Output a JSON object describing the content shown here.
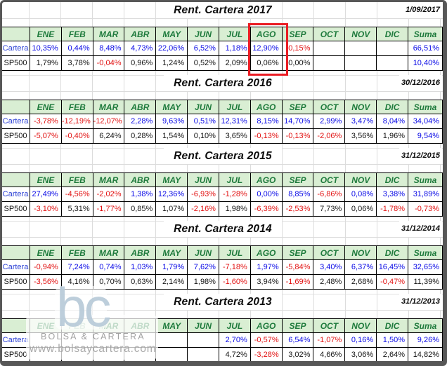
{
  "colors": {
    "positive": "#0a0ae6",
    "negative": "#e21212",
    "label_blue": "#2a3fd4",
    "header_bg": "#d9eed3",
    "header_text": "#1e7a3c",
    "highlight": "#ea1c23"
  },
  "header": [
    {
      "t": ""
    },
    {
      "t": "ENE"
    },
    {
      "t": "FEB"
    },
    {
      "t": "MAR"
    },
    {
      "t": "ABR"
    },
    {
      "t": "MAY"
    },
    {
      "t": "JUN"
    },
    {
      "t": "JUL"
    },
    {
      "t": "AGO"
    },
    {
      "t": "SEP"
    },
    {
      "t": "OCT"
    },
    {
      "t": "NOV"
    },
    {
      "t": "DIC"
    },
    {
      "t": "Suma"
    }
  ],
  "blocks": [
    {
      "title": "Rent. Cartera 2017",
      "date": "1/09/2017",
      "highlighted_month": "AGO",
      "cartera": [
        {
          "t": "Cartera",
          "c": "rl-cartera"
        },
        {
          "t": "10,35%",
          "c": "pos"
        },
        {
          "t": "0,44%",
          "c": "pos"
        },
        {
          "t": "8,48%",
          "c": "pos"
        },
        {
          "t": "4,73%",
          "c": "pos"
        },
        {
          "t": "22,06%",
          "c": "pos"
        },
        {
          "t": "6,52%",
          "c": "pos"
        },
        {
          "t": "1,18%",
          "c": "pos"
        },
        {
          "t": "12,90%",
          "c": "pos"
        },
        {
          "t": "-0,15%",
          "c": "neg"
        },
        {
          "t": ""
        },
        {
          "t": ""
        },
        {
          "t": ""
        },
        {
          "t": "66,51%",
          "c": "pos"
        }
      ],
      "sp500": [
        {
          "t": "SP500",
          "c": "rl-sp500"
        },
        {
          "t": "1,79%",
          "c": "plain"
        },
        {
          "t": "3,78%",
          "c": "plain"
        },
        {
          "t": "-0,04%",
          "c": "neg"
        },
        {
          "t": "0,96%",
          "c": "plain"
        },
        {
          "t": "1,24%",
          "c": "plain"
        },
        {
          "t": "0,52%",
          "c": "plain"
        },
        {
          "t": "2,09%",
          "c": "plain"
        },
        {
          "t": "0,06%",
          "c": "plain"
        },
        {
          "t": "0,00%",
          "c": "plain"
        },
        {
          "t": ""
        },
        {
          "t": ""
        },
        {
          "t": ""
        },
        {
          "t": "10,40%",
          "c": "pos"
        }
      ]
    },
    {
      "title": "Rent. Cartera 2016",
      "date": "30/12/2016",
      "cartera": [
        {
          "t": "Cartera",
          "c": "rl-cartera"
        },
        {
          "t": "-3,78%",
          "c": "neg"
        },
        {
          "t": "-12,19%",
          "c": "neg"
        },
        {
          "t": "-12,07%",
          "c": "neg"
        },
        {
          "t": "2,28%",
          "c": "pos"
        },
        {
          "t": "9,63%",
          "c": "pos"
        },
        {
          "t": "0,51%",
          "c": "pos"
        },
        {
          "t": "12,31%",
          "c": "pos"
        },
        {
          "t": "8,15%",
          "c": "pos"
        },
        {
          "t": "14,70%",
          "c": "pos"
        },
        {
          "t": "2,99%",
          "c": "pos"
        },
        {
          "t": "3,47%",
          "c": "pos"
        },
        {
          "t": "8,04%",
          "c": "pos"
        },
        {
          "t": "34,04%",
          "c": "pos"
        }
      ],
      "sp500": [
        {
          "t": "SP500",
          "c": "rl-sp500"
        },
        {
          "t": "-5,07%",
          "c": "neg"
        },
        {
          "t": "-0,40%",
          "c": "neg"
        },
        {
          "t": "6,24%",
          "c": "plain"
        },
        {
          "t": "0,28%",
          "c": "plain"
        },
        {
          "t": "1,54%",
          "c": "plain"
        },
        {
          "t": "0,10%",
          "c": "plain"
        },
        {
          "t": "3,65%",
          "c": "plain"
        },
        {
          "t": "-0,13%",
          "c": "neg"
        },
        {
          "t": "-0,13%",
          "c": "neg"
        },
        {
          "t": "-2,06%",
          "c": "neg"
        },
        {
          "t": "3,56%",
          "c": "plain"
        },
        {
          "t": "1,96%",
          "c": "plain"
        },
        {
          "t": "9,54%",
          "c": "pos"
        }
      ]
    },
    {
      "title": "Rent. Cartera 2015",
      "date": "31/12/2015",
      "cartera": [
        {
          "t": "Cartera",
          "c": "rl-cartera"
        },
        {
          "t": "27,49%",
          "c": "pos"
        },
        {
          "t": "-4,56%",
          "c": "neg"
        },
        {
          "t": "-2,02%",
          "c": "neg"
        },
        {
          "t": "1,38%",
          "c": "pos"
        },
        {
          "t": "12,36%",
          "c": "pos"
        },
        {
          "t": "-6,93%",
          "c": "neg"
        },
        {
          "t": "-1,28%",
          "c": "neg"
        },
        {
          "t": "0,00%",
          "c": "pos"
        },
        {
          "t": "8,85%",
          "c": "pos"
        },
        {
          "t": "-6,86%",
          "c": "neg"
        },
        {
          "t": "0,08%",
          "c": "pos"
        },
        {
          "t": "3,38%",
          "c": "pos"
        },
        {
          "t": "31,89%",
          "c": "pos"
        }
      ],
      "sp500": [
        {
          "t": "SP500",
          "c": "rl-sp500"
        },
        {
          "t": "-3,10%",
          "c": "neg"
        },
        {
          "t": "5,31%",
          "c": "plain"
        },
        {
          "t": "-1,77%",
          "c": "neg"
        },
        {
          "t": "0,85%",
          "c": "plain"
        },
        {
          "t": "1,07%",
          "c": "plain"
        },
        {
          "t": "-2,16%",
          "c": "neg"
        },
        {
          "t": "1,98%",
          "c": "plain"
        },
        {
          "t": "-6,39%",
          "c": "neg"
        },
        {
          "t": "-2,53%",
          "c": "neg"
        },
        {
          "t": "7,73%",
          "c": "plain"
        },
        {
          "t": "0,06%",
          "c": "plain"
        },
        {
          "t": "-1,78%",
          "c": "neg"
        },
        {
          "t": "-0,73%",
          "c": "neg"
        }
      ]
    },
    {
      "title": "Rent. Cartera 2014",
      "date": "31/12/2014",
      "cartera": [
        {
          "t": "Cartera",
          "c": "rl-cartera"
        },
        {
          "t": "-0,94%",
          "c": "neg"
        },
        {
          "t": "7,24%",
          "c": "pos"
        },
        {
          "t": "0,74%",
          "c": "pos"
        },
        {
          "t": "1,03%",
          "c": "pos"
        },
        {
          "t": "1,79%",
          "c": "pos"
        },
        {
          "t": "7,62%",
          "c": "pos"
        },
        {
          "t": "-7,18%",
          "c": "neg"
        },
        {
          "t": "1,97%",
          "c": "pos"
        },
        {
          "t": "-5,84%",
          "c": "neg"
        },
        {
          "t": "3,40%",
          "c": "pos"
        },
        {
          "t": "6,37%",
          "c": "pos"
        },
        {
          "t": "16,45%",
          "c": "pos"
        },
        {
          "t": "32,65%",
          "c": "pos"
        }
      ],
      "sp500": [
        {
          "t": "SP500",
          "c": "rl-sp500"
        },
        {
          "t": "-3,56%",
          "c": "neg"
        },
        {
          "t": "4,16%",
          "c": "plain"
        },
        {
          "t": "0,70%",
          "c": "plain"
        },
        {
          "t": "0,63%",
          "c": "plain"
        },
        {
          "t": "2,14%",
          "c": "plain"
        },
        {
          "t": "1,98%",
          "c": "plain"
        },
        {
          "t": "-1,60%",
          "c": "neg"
        },
        {
          "t": "3,94%",
          "c": "plain"
        },
        {
          "t": "-1,69%",
          "c": "neg"
        },
        {
          "t": "2,48%",
          "c": "plain"
        },
        {
          "t": "2,68%",
          "c": "plain"
        },
        {
          "t": "-0,47%",
          "c": "neg"
        },
        {
          "t": "11,39%",
          "c": "plain"
        }
      ]
    },
    {
      "title": "Rent. Cartera 2013",
      "date": "31/12/2013",
      "cartera": [
        {
          "t": "Cartera",
          "c": "rl-cartera"
        },
        {
          "t": ""
        },
        {
          "t": ""
        },
        {
          "t": ""
        },
        {
          "t": ""
        },
        {
          "t": ""
        },
        {
          "t": ""
        },
        {
          "t": "2,70%",
          "c": "pos"
        },
        {
          "t": "-0,57%",
          "c": "neg"
        },
        {
          "t": "6,54%",
          "c": "pos"
        },
        {
          "t": "-1,07%",
          "c": "neg"
        },
        {
          "t": "0,16%",
          "c": "pos"
        },
        {
          "t": "1,50%",
          "c": "pos"
        },
        {
          "t": "9,26%",
          "c": "pos"
        }
      ],
      "sp500": [
        {
          "t": "SP500",
          "c": "rl-sp500"
        },
        {
          "t": ""
        },
        {
          "t": ""
        },
        {
          "t": ""
        },
        {
          "t": ""
        },
        {
          "t": ""
        },
        {
          "t": ""
        },
        {
          "t": "4,72%",
          "c": "plain"
        },
        {
          "t": "-3,28%",
          "c": "neg"
        },
        {
          "t": "3,02%",
          "c": "plain"
        },
        {
          "t": "4,66%",
          "c": "plain"
        },
        {
          "t": "3,06%",
          "c": "plain"
        },
        {
          "t": "2,64%",
          "c": "plain"
        },
        {
          "t": "14,82%",
          "c": "plain"
        }
      ]
    }
  ],
  "watermark": {
    "logo": "bc",
    "line1": "BOLSA & CARTERA",
    "line2": "www.bolsaycartera.com"
  }
}
